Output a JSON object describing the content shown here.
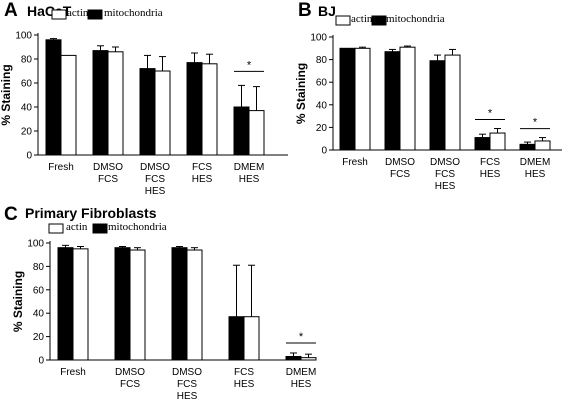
{
  "figure": {
    "legend": {
      "open": "actin",
      "filled": "mitochondria"
    },
    "colors": {
      "filled": "#000000",
      "open": "#ffffff",
      "stroke": "#000000"
    }
  },
  "chart_data": [
    {
      "type": "bar",
      "panel": "A",
      "title": "HaCaT",
      "ylabel": "% Staining",
      "ylim": [
        0,
        100
      ],
      "yticks": [
        0,
        20,
        40,
        60,
        80,
        100
      ],
      "categories": [
        "Fresh",
        "DMSO\nFCS",
        "DMSO\nFCS\nHES",
        "FCS\nHES",
        "DMEM\nHES"
      ],
      "series": [
        {
          "name": "mitochondria",
          "values": [
            96,
            87,
            72,
            77,
            40
          ],
          "errors": [
            1,
            4,
            11,
            8,
            18
          ]
        },
        {
          "name": "actin",
          "values": [
            83,
            86,
            70,
            76,
            37
          ],
          "errors": [
            0,
            4,
            12,
            8,
            20
          ]
        }
      ],
      "significance": [
        {
          "category": "DMEM\nHES",
          "label": "*"
        }
      ],
      "legend_position": "top-left"
    },
    {
      "type": "bar",
      "panel": "B",
      "title": "BJ",
      "ylabel": "% Staining",
      "ylim": [
        0,
        100
      ],
      "yticks": [
        0,
        20,
        40,
        60,
        80,
        100
      ],
      "categories": [
        "Fresh",
        "DMSO\nFCS",
        "DMSO\nFCS\nHES",
        "FCS\nHES",
        "DMEM\nHES"
      ],
      "series": [
        {
          "name": "mitochondria",
          "values": [
            90,
            87,
            79,
            11,
            5
          ],
          "errors": [
            0,
            2,
            5,
            3,
            2
          ]
        },
        {
          "name": "actin",
          "values": [
            90,
            91,
            84,
            15,
            8
          ],
          "errors": [
            1,
            1,
            5,
            4,
            3
          ]
        }
      ],
      "significance": [
        {
          "category": "FCS\nHES",
          "label": "*"
        },
        {
          "category": "DMEM\nHES",
          "label": "*"
        }
      ],
      "legend_position": "top"
    },
    {
      "type": "bar",
      "panel": "C",
      "title": "Primary Fibroblasts",
      "ylabel": "% Staining",
      "ylim": [
        0,
        100
      ],
      "yticks": [
        0,
        20,
        40,
        60,
        80,
        100
      ],
      "categories": [
        "Fresh",
        "DMSO\nFCS",
        "DMSO\nFCS\nHES",
        "FCS\nHES",
        "DMEM\nHES"
      ],
      "series": [
        {
          "name": "mitochondria",
          "values": [
            96,
            96,
            96,
            37,
            3
          ],
          "errors": [
            2,
            1,
            1,
            44,
            3
          ]
        },
        {
          "name": "actin",
          "values": [
            95,
            94,
            94,
            37,
            2
          ],
          "errors": [
            2,
            2,
            2,
            44,
            3
          ]
        }
      ],
      "significance": [
        {
          "category": "DMEM\nHES",
          "label": "*"
        }
      ],
      "legend_position": "top-left"
    }
  ]
}
